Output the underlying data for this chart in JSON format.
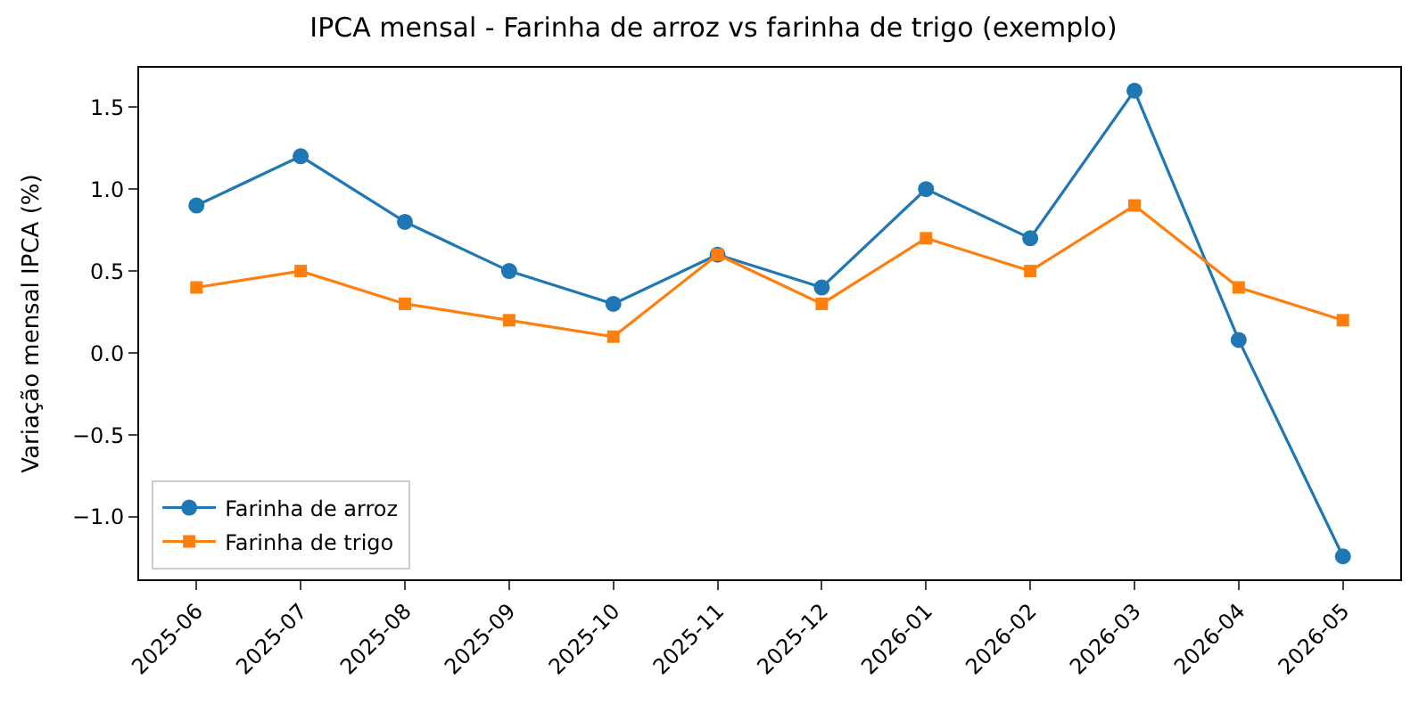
{
  "chart_data": {
    "type": "line",
    "title": "IPCA mensal - Farinha de arroz vs farinha de trigo (exemplo)",
    "ylabel": "Variação mensal IPCA (%)",
    "categories": [
      "2025-06",
      "2025-07",
      "2025-08",
      "2025-09",
      "2025-10",
      "2025-11",
      "2025-12",
      "2026-01",
      "2026-02",
      "2026-03",
      "2026-04",
      "2026-05"
    ],
    "series": [
      {
        "name": "Farinha de arroz",
        "color": "#1f77b4",
        "marker": "circle",
        "values": [
          0.9,
          1.2,
          0.8,
          0.5,
          0.3,
          0.6,
          0.4,
          1.0,
          0.7,
          1.6,
          0.08,
          -1.24
        ]
      },
      {
        "name": "Farinha de trigo",
        "color": "#ff7f0e",
        "marker": "square",
        "values": [
          0.4,
          0.5,
          0.3,
          0.2,
          0.1,
          0.6,
          0.3,
          0.7,
          0.5,
          0.9,
          0.4,
          0.2
        ]
      }
    ],
    "ylim": [
      -1.38,
      1.74
    ],
    "yticks": [
      {
        "value": -1.0,
        "label": "−1.0"
      },
      {
        "value": -0.5,
        "label": "−0.5"
      },
      {
        "value": 0.0,
        "label": "0.0"
      },
      {
        "value": 0.5,
        "label": "0.5"
      },
      {
        "value": 1.0,
        "label": "1.0"
      },
      {
        "value": 1.5,
        "label": "1.5"
      }
    ],
    "legend": "bottom left",
    "line_style": "solid"
  }
}
